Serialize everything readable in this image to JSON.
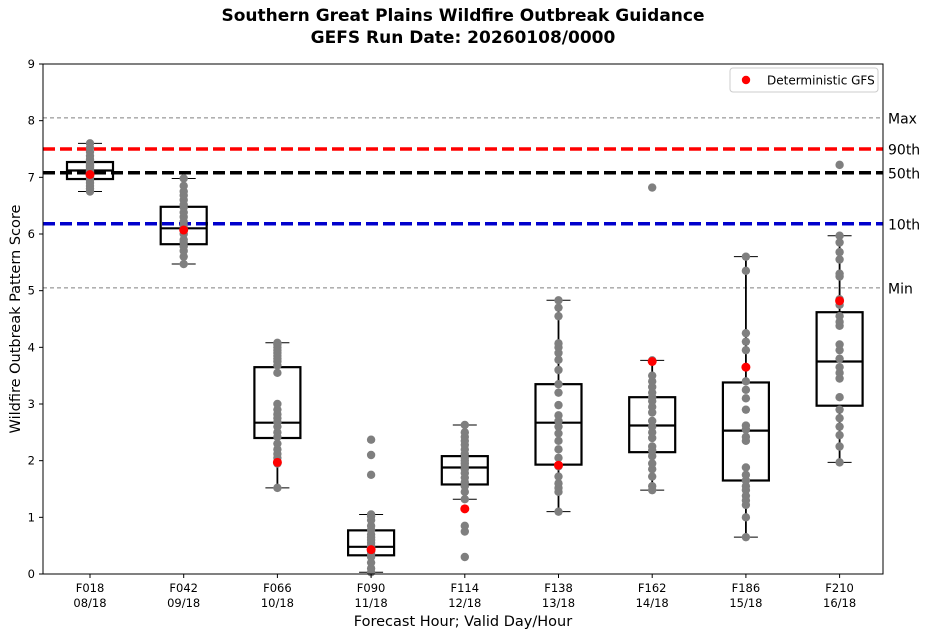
{
  "chart_data": {
    "type": "box",
    "title": "Southern Great Plains Wildfire Outbreak Guidance",
    "subtitle": "GEFS Run Date: 20260108/0000",
    "xlabel": "Forecast Hour; Valid Day/Hour",
    "ylabel": "Wildfire Outbreak Pattern Score",
    "ylim": [
      0,
      9
    ],
    "yticks": [
      "0",
      "1",
      "2",
      "3",
      "4",
      "5",
      "6",
      "7",
      "8",
      "9"
    ],
    "legend": {
      "label": "Deterministic GFS",
      "position": "top-right"
    },
    "reference_lines": [
      {
        "label": "Max",
        "value": 8.05,
        "color": "#808080",
        "style": "dashed-thin"
      },
      {
        "label": "90th",
        "value": 7.5,
        "color": "#ff0000",
        "style": "dashed-thick"
      },
      {
        "label": "50th",
        "value": 7.08,
        "color": "#000000",
        "style": "dashed-thick"
      },
      {
        "label": "10th",
        "value": 6.18,
        "color": "#0000cc",
        "style": "dashed-thick"
      },
      {
        "label": "Min",
        "value": 5.05,
        "color": "#808080",
        "style": "dashed-thin"
      }
    ],
    "categories": [
      {
        "hour": "F018",
        "valid": "08/18"
      },
      {
        "hour": "F042",
        "valid": "09/18"
      },
      {
        "hour": "F066",
        "valid": "10/18"
      },
      {
        "hour": "F090",
        "valid": "11/18"
      },
      {
        "hour": "F114",
        "valid": "12/18"
      },
      {
        "hour": "F138",
        "valid": "13/18"
      },
      {
        "hour": "F162",
        "valid": "14/18"
      },
      {
        "hour": "F186",
        "valid": "15/18"
      },
      {
        "hour": "F210",
        "valid": "16/18"
      }
    ],
    "boxes": [
      {
        "whisker_low": 6.75,
        "q1": 6.97,
        "median": 7.12,
        "q3": 7.27,
        "whisker_high": 7.6
      },
      {
        "whisker_low": 5.47,
        "q1": 5.82,
        "median": 6.1,
        "q3": 6.48,
        "whisker_high": 6.98
      },
      {
        "whisker_low": 1.52,
        "q1": 2.4,
        "median": 2.67,
        "q3": 3.65,
        "whisker_high": 4.08
      },
      {
        "whisker_low": 0.03,
        "q1": 0.33,
        "median": 0.48,
        "q3": 0.77,
        "whisker_high": 1.05
      },
      {
        "whisker_low": 1.32,
        "q1": 1.58,
        "median": 1.88,
        "q3": 2.08,
        "whisker_high": 2.63
      },
      {
        "whisker_low": 1.1,
        "q1": 1.93,
        "median": 2.67,
        "q3": 3.35,
        "whisker_high": 4.83
      },
      {
        "whisker_low": 1.48,
        "q1": 2.15,
        "median": 2.62,
        "q3": 3.12,
        "whisker_high": 3.77
      },
      {
        "whisker_low": 0.65,
        "q1": 1.65,
        "median": 2.53,
        "q3": 3.38,
        "whisker_high": 5.6
      },
      {
        "whisker_low": 1.97,
        "q1": 2.97,
        "median": 3.75,
        "q3": 4.62,
        "whisker_high": 5.97
      }
    ],
    "members": [
      [
        6.75,
        6.8,
        6.85,
        6.9,
        6.95,
        7.0,
        7.02,
        7.05,
        7.08,
        7.1,
        7.12,
        7.15,
        7.18,
        7.2,
        7.22,
        7.25,
        7.28,
        7.32,
        7.38,
        7.45,
        7.52,
        7.6
      ],
      [
        5.47,
        5.6,
        5.7,
        5.78,
        5.85,
        5.9,
        6.0,
        6.08,
        6.15,
        6.22,
        6.3,
        6.38,
        6.47,
        6.52,
        6.6,
        6.68,
        6.75,
        6.85,
        6.98
      ],
      [
        1.52,
        1.95,
        2.05,
        2.12,
        2.2,
        2.3,
        2.42,
        2.5,
        2.6,
        2.68,
        2.75,
        2.82,
        2.9,
        3.0,
        3.55,
        3.68,
        3.75,
        3.8,
        3.85,
        3.9,
        3.95,
        4.0,
        4.05,
        4.08
      ],
      [
        0.03,
        0.1,
        0.2,
        0.3,
        0.35,
        0.4,
        0.45,
        0.48,
        0.5,
        0.55,
        0.6,
        0.65,
        0.7,
        0.78,
        0.85,
        0.95,
        1.02,
        1.05,
        1.75,
        2.1,
        2.37
      ],
      [
        0.3,
        0.75,
        0.85,
        1.32,
        1.45,
        1.55,
        1.62,
        1.7,
        1.78,
        1.85,
        1.9,
        1.95,
        2.0,
        2.05,
        2.12,
        2.2,
        2.28,
        2.35,
        2.42,
        2.5,
        2.63
      ],
      [
        1.1,
        1.45,
        1.52,
        1.6,
        1.72,
        1.9,
        2.05,
        2.2,
        2.35,
        2.48,
        2.6,
        2.7,
        2.8,
        2.98,
        3.2,
        3.35,
        3.6,
        3.78,
        3.9,
        4.0,
        4.07,
        4.55,
        4.7,
        4.83
      ],
      [
        1.48,
        1.55,
        1.72,
        1.85,
        1.95,
        2.08,
        2.18,
        2.25,
        2.4,
        2.5,
        2.6,
        2.7,
        2.85,
        2.95,
        3.05,
        3.12,
        3.2,
        3.3,
        3.4,
        3.5,
        3.77,
        6.82
      ],
      [
        0.65,
        1.0,
        1.22,
        1.3,
        1.38,
        1.48,
        1.55,
        1.65,
        1.75,
        1.88,
        2.35,
        2.42,
        2.55,
        2.62,
        2.9,
        3.1,
        3.25,
        3.4,
        3.95,
        4.1,
        4.25,
        5.35,
        5.6
      ],
      [
        1.97,
        2.25,
        2.45,
        2.6,
        2.75,
        2.9,
        3.12,
        3.45,
        3.55,
        3.65,
        3.8,
        3.95,
        4.05,
        4.38,
        4.45,
        4.55,
        4.75,
        4.85,
        5.25,
        5.3,
        5.55,
        5.68,
        5.85,
        5.97,
        7.22
      ]
    ],
    "deterministic_gfs": [
      7.05,
      6.07,
      1.97,
      0.43,
      1.15,
      1.92,
      3.75,
      3.65,
      4.82
    ]
  }
}
